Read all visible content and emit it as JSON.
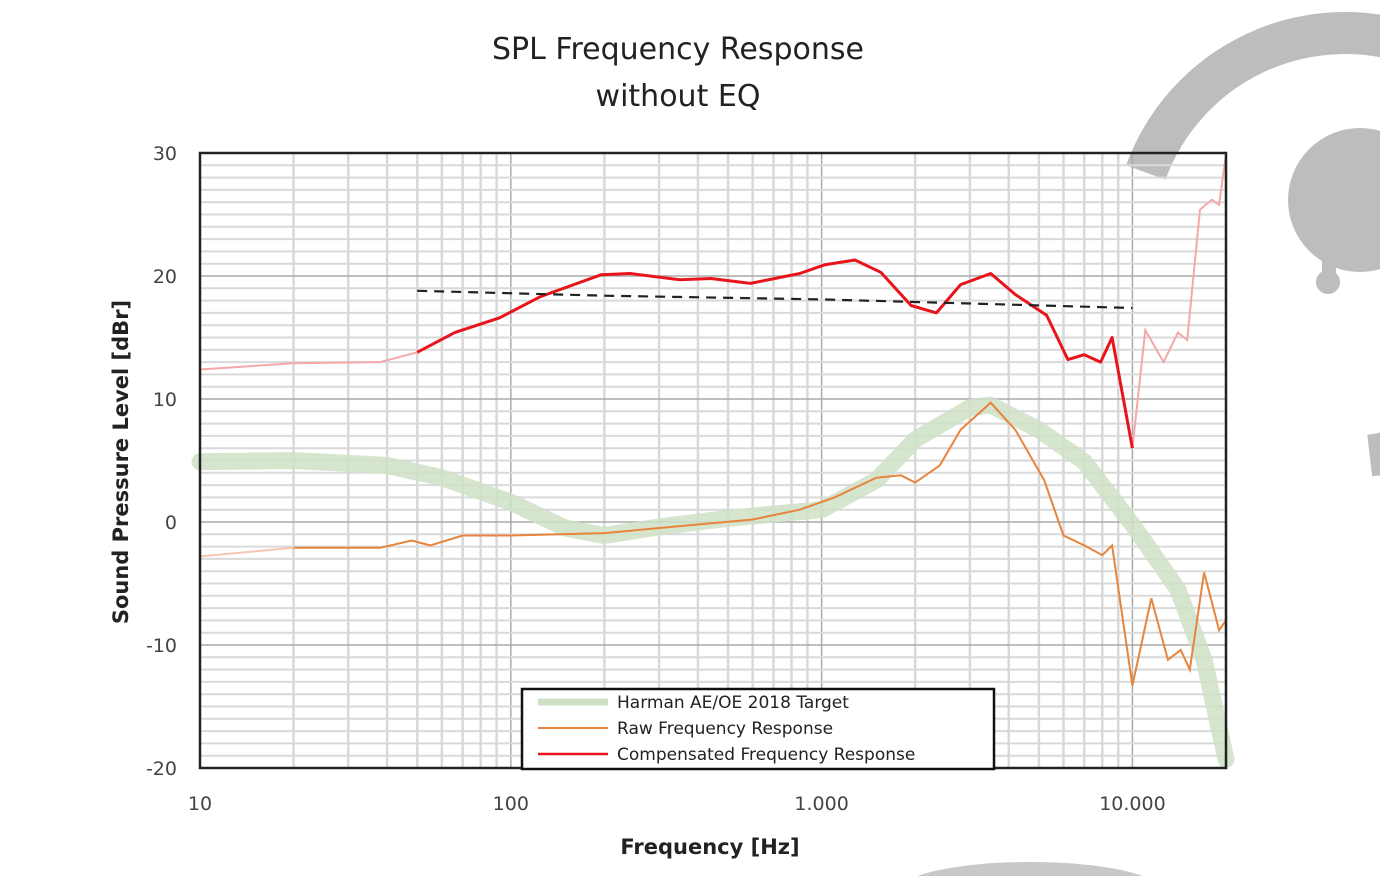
{
  "chart_data": {
    "type": "line",
    "title": [
      "SPL Frequency Response",
      "without EQ"
    ],
    "xlabel": "Frequency [Hz]",
    "ylabel": "Sound Pressure Level [dBr]",
    "xscale": "log",
    "xlim": [
      10,
      20000
    ],
    "ylim": [
      -20,
      30
    ],
    "xticks": [
      10,
      100,
      1000,
      10000
    ],
    "xtick_labels": [
      "10",
      "100",
      "1.000",
      "10.000"
    ],
    "yticks": [
      30,
      20,
      10,
      0,
      -10,
      -20
    ],
    "ytick_labels": [
      "30",
      "20",
      "10",
      "0",
      "-10",
      "-20"
    ],
    "grid": true,
    "legend_position": "bottom-center",
    "series": [
      {
        "name": "Harman AE/OE 2018 Target",
        "color": "#cfe0c6",
        "style": "thick-band",
        "x": [
          10,
          20,
          40,
          60,
          100,
          150,
          200,
          300,
          500,
          1000,
          1500,
          2000,
          3000,
          3500,
          5000,
          7000,
          10000,
          14000,
          17000,
          20000
        ],
        "y": [
          4.9,
          5.0,
          4.6,
          3.6,
          1.6,
          -0.5,
          -1.1,
          -0.4,
          0.3,
          1.0,
          3.4,
          6.7,
          9.3,
          9.5,
          7.5,
          4.9,
          -0.2,
          -5.5,
          -11.2,
          -19.3
        ]
      },
      {
        "name": "Raw Frequency Response",
        "color": "#e8843c",
        "x": [
          10,
          20,
          38,
          48,
          55,
          70,
          100,
          200,
          400,
          600,
          850,
          1100,
          1500,
          1800,
          2000,
          2400,
          2800,
          3500,
          4200,
          5200,
          6000,
          7000,
          8000,
          8600,
          10000,
          11500,
          13000,
          14300,
          15300,
          17000,
          19000,
          20000
        ],
        "y": [
          -2.8,
          -2.1,
          -2.1,
          -1.5,
          -1.9,
          -1.1,
          -1.1,
          -0.9,
          -0.2,
          0.2,
          1.0,
          2.0,
          3.6,
          3.8,
          3.2,
          4.6,
          7.5,
          9.7,
          7.5,
          3.4,
          -1.1,
          -1.9,
          -2.7,
          -1.9,
          -13.3,
          -6.2,
          -11.2,
          -10.4,
          -12.0,
          -4.1,
          -8.8,
          -8.0
        ]
      },
      {
        "name": "Compensated Frequency Response",
        "color": "#e8141c",
        "faded_color": "#f4a8a8",
        "x": [
          10,
          20,
          38,
          50,
          66,
          92,
          124,
          195,
          242,
          350,
          440,
          590,
          850,
          1020,
          1280,
          1550,
          1940,
          2340,
          2800,
          3500,
          4200,
          5300,
          6200,
          7000,
          7900,
          8600,
          10000,
          11000,
          12600,
          14000,
          15000,
          16500,
          18000,
          19000,
          20000
        ],
        "y": [
          12.4,
          12.9,
          13.0,
          13.8,
          15.4,
          16.6,
          18.3,
          20.1,
          20.2,
          19.7,
          19.8,
          19.4,
          20.2,
          20.9,
          21.3,
          20.3,
          17.6,
          17.0,
          19.3,
          20.2,
          18.5,
          16.8,
          13.2,
          13.6,
          13.0,
          15.0,
          6.0,
          15.6,
          13.0,
          15.4,
          14.8,
          25.4,
          26.2,
          25.8,
          29.9
        ],
        "solid_range": [
          50,
          10000
        ]
      },
      {
        "color": "#222222",
        "style": "dashed",
        "x": [
          50,
          200,
          1000,
          10000
        ],
        "y": [
          18.8,
          18.4,
          18.1,
          17.4
        ]
      }
    ]
  }
}
